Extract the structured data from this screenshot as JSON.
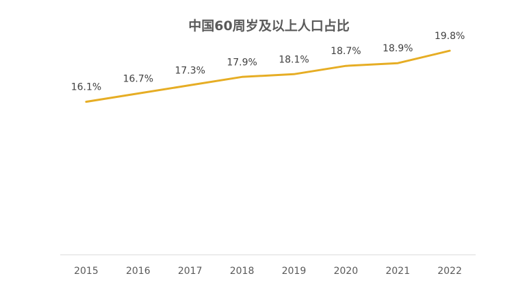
{
  "colors": {
    "line": "#E6AD24",
    "axis": "#D9D9D9",
    "title": "#595959",
    "label": "#404040"
  },
  "chart_data": {
    "type": "line",
    "title": "中国60周岁及以上人口占比",
    "xlabel": "",
    "ylabel": "",
    "categories": [
      "2015",
      "2016",
      "2017",
      "2018",
      "2019",
      "2020",
      "2021",
      "2022"
    ],
    "series": [
      {
        "values": [
          16.1,
          16.7,
          17.3,
          17.9,
          18.1,
          18.7,
          18.9,
          19.8
        ],
        "labels": [
          "16.1%",
          "16.7%",
          "17.3%",
          "17.9%",
          "18.1%",
          "18.7%",
          "18.9%",
          "19.8%"
        ]
      }
    ],
    "ylim": [
      5,
      20.5
    ],
    "grid": false,
    "legend": "none"
  }
}
